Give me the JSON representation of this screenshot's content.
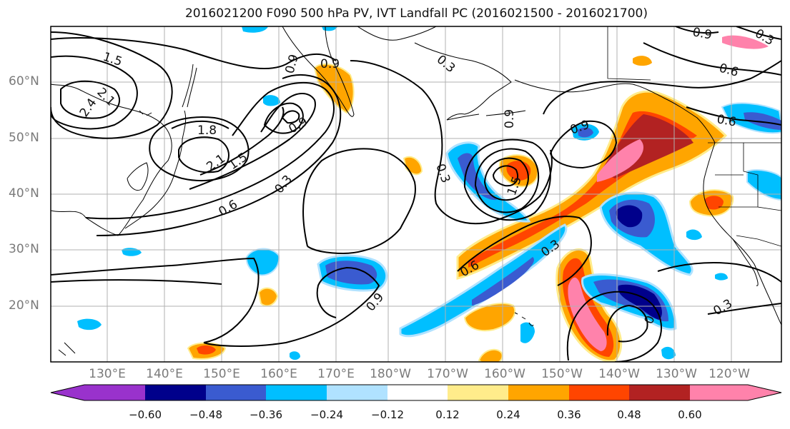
{
  "title": "2016021200 F090 500 hPa PV, IVT Landfall PC (2016021500 - 2016021700)",
  "lat_labels": [
    "60°N",
    "50°N",
    "40°N",
    "30°N",
    "20°N"
  ],
  "lon_labels": [
    "130°E",
    "140°E",
    "150°E",
    "160°E",
    "170°E",
    "180°W",
    "170°W",
    "160°W",
    "150°W",
    "140°W",
    "130°W",
    "120°W"
  ],
  "colorbar": {
    "ticks": [
      "−0.60",
      "−0.48",
      "−0.36",
      "−0.24",
      "−0.12",
      "0.12",
      "0.24",
      "0.36",
      "0.48",
      "0.60"
    ],
    "colors": [
      "#9932cc",
      "#00008b",
      "#3a5bd0",
      "#00bfff",
      "#b0e2ff",
      "#ffffff",
      "#ffec8b",
      "#ffa500",
      "#ff4500",
      "#b22222",
      "#ff82ab"
    ]
  },
  "contour_labels": [
    "1.5",
    "2.1",
    "2.4",
    "1.8",
    "2.1",
    "1.5",
    "0.9",
    "0.9",
    "0.3",
    "0.6",
    "0.9",
    "0.9",
    "0.3",
    "0.3",
    "0.6",
    "0.9",
    "0.6",
    "0.9",
    "1.5",
    "0.3",
    "0.6",
    "0.3",
    "0.9",
    "0.3",
    "0"
  ]
}
